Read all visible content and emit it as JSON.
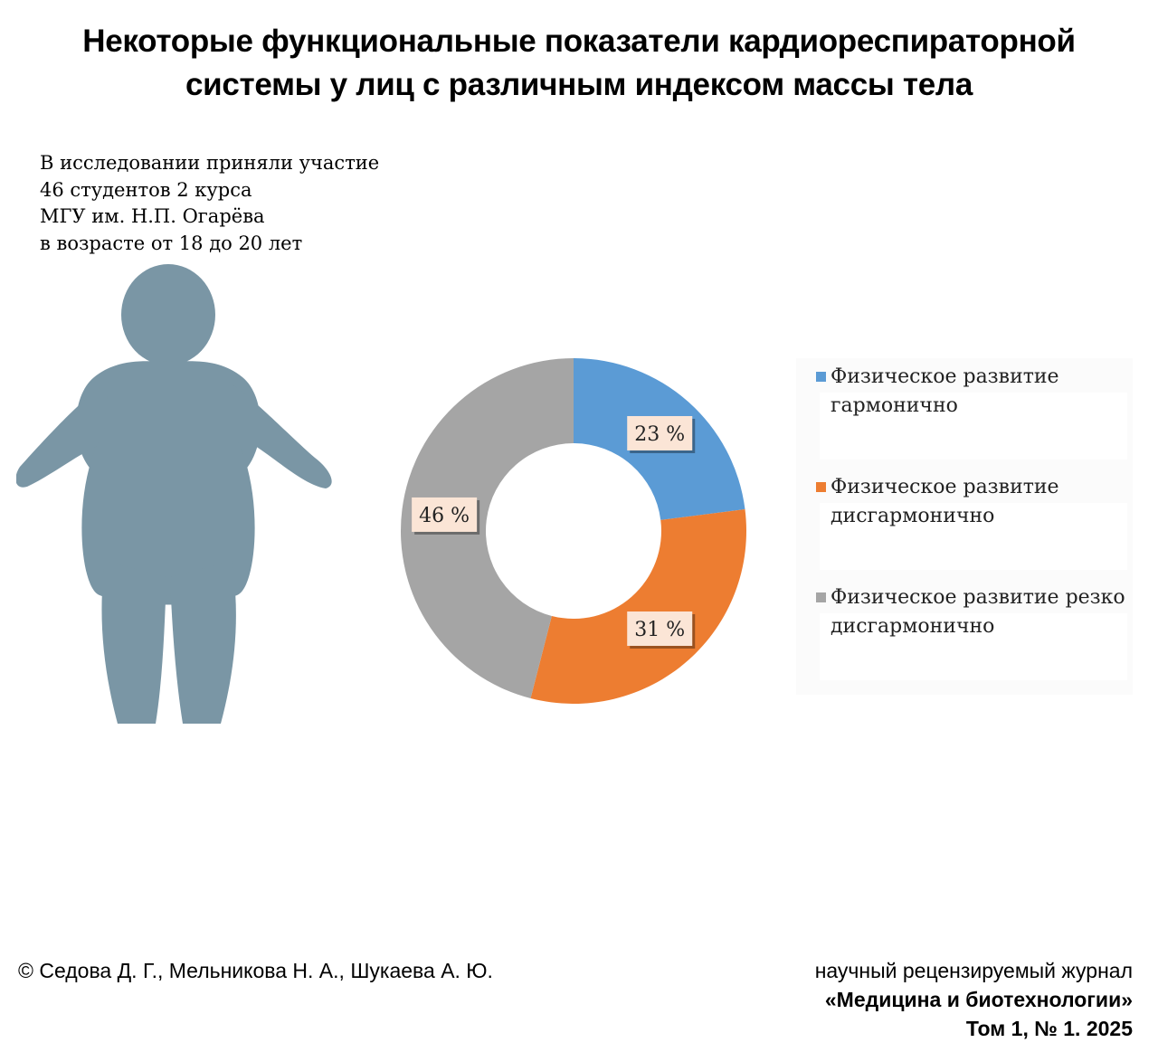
{
  "title": {
    "line1": "Некоторые функциональные показатели кардиореспираторной",
    "line2": "системы у лиц с различным индексом массы тела"
  },
  "intro": {
    "line1": "В исследовании приняли участие",
    "line2": "46 студентов 2 курса",
    "line3": "МГУ им. Н.П. Огарёва",
    "line4": "в возрасте от 18 до 20 лет"
  },
  "illustration": {
    "icon": "person-silhouette-icon",
    "color": "#7a96a5"
  },
  "chart_data": {
    "type": "pie",
    "variant": "donut",
    "title": "",
    "labels": [
      "Физическое развитие гармонично",
      "Физическое развитие дисгармонично",
      "Физическое развитие резко дисгармонично"
    ],
    "values": [
      23,
      31,
      46
    ],
    "data_labels": [
      "23 %",
      "31 %",
      "46 %"
    ],
    "colors": [
      "#5b9bd5",
      "#ed7d31",
      "#a5a5a5"
    ],
    "label_background": "#fbe5d6",
    "legend_position": "right"
  },
  "legend": {
    "items": [
      {
        "line1": "Физическое развитие",
        "line2": "гармонично",
        "color": "#5b9bd5"
      },
      {
        "line1": "Физическое развитие",
        "line2": "дисгармонично",
        "color": "#ed7d31"
      },
      {
        "line1": "Физическое развитие резко",
        "line2": "дисгармонично",
        "color": "#a5a5a5"
      }
    ]
  },
  "footer": {
    "authors": "© Седова Д. Г., Мельникова Н. А., Шукаева А. Ю.",
    "journal_type": "научный рецензируемый журнал",
    "journal_name": "«Медицина и биотехнологии»",
    "issue": "Том 1, № 1. 2025"
  }
}
